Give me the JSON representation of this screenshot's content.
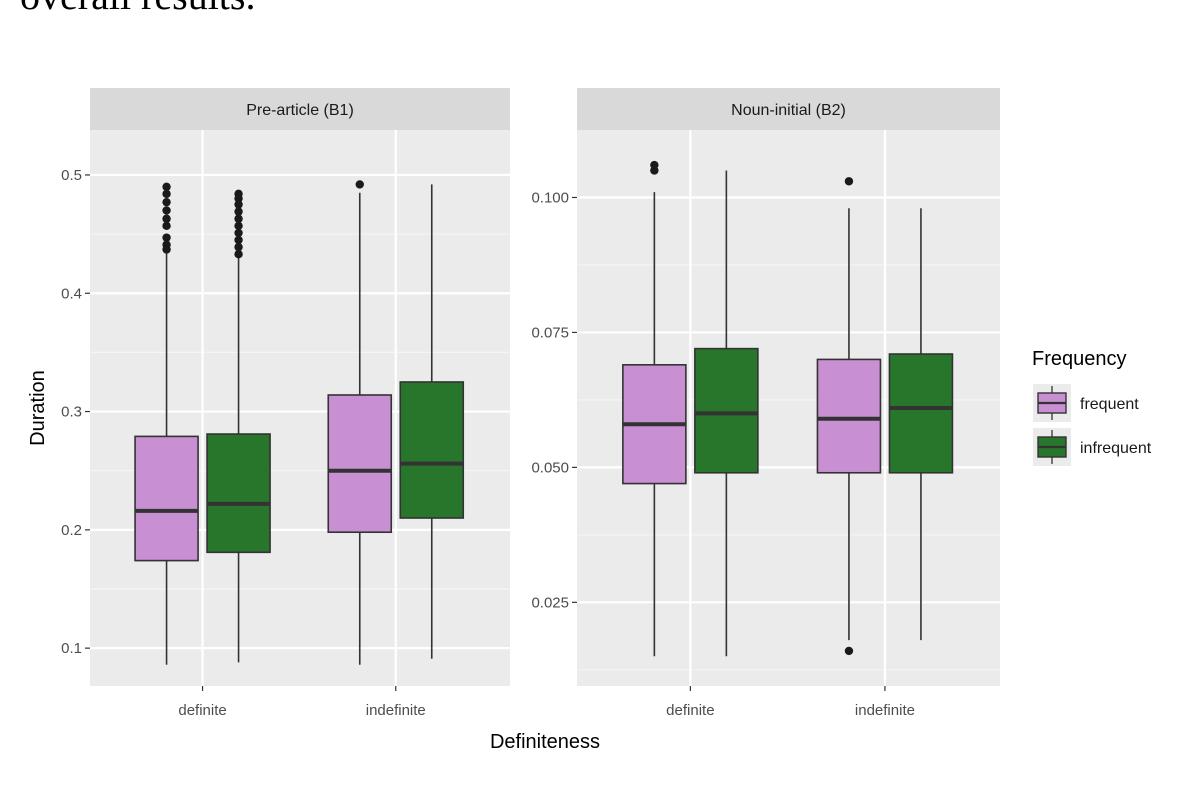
{
  "page_text": "overall results.",
  "chart_data": {
    "type": "boxplot",
    "xlabel": "Definiteness",
    "ylabel": "Duration",
    "legend": {
      "title": "Frequency",
      "placement": "right",
      "entries": [
        {
          "name": "frequent",
          "color": "#c88fd2"
        },
        {
          "name": "infrequent",
          "color": "#27762b"
        }
      ]
    },
    "categories": [
      "definite",
      "indefinite"
    ],
    "grid": true,
    "panels": [
      {
        "strip": "Pre-article (B1)",
        "ylim": [
          0.068,
          0.538
        ],
        "y_ticks": [
          {
            "value": 0.1,
            "label": "0.1"
          },
          {
            "value": 0.2,
            "label": "0.2"
          },
          {
            "value": 0.3,
            "label": "0.3"
          },
          {
            "value": 0.4,
            "label": "0.4"
          },
          {
            "value": 0.5,
            "label": "0.5"
          }
        ],
        "boxes": [
          {
            "category": "definite",
            "series": "frequent",
            "whisker_low": 0.086,
            "q1": 0.174,
            "median": 0.216,
            "q3": 0.279,
            "whisker_high": 0.436,
            "outliers": [
              0.437,
              0.441,
              0.447,
              0.457,
              0.463,
              0.47,
              0.477,
              0.484,
              0.49
            ]
          },
          {
            "category": "definite",
            "series": "infrequent",
            "whisker_low": 0.088,
            "q1": 0.181,
            "median": 0.222,
            "q3": 0.281,
            "whisker_high": 0.432,
            "outliers": [
              0.433,
              0.439,
              0.445,
              0.451,
              0.457,
              0.463,
              0.469,
              0.475,
              0.48,
              0.484
            ]
          },
          {
            "category": "indefinite",
            "series": "frequent",
            "whisker_low": 0.086,
            "q1": 0.198,
            "median": 0.25,
            "q3": 0.314,
            "whisker_high": 0.485,
            "outliers": [
              0.492
            ]
          },
          {
            "category": "indefinite",
            "series": "infrequent",
            "whisker_low": 0.091,
            "q1": 0.21,
            "median": 0.256,
            "q3": 0.325,
            "whisker_high": 0.492,
            "outliers": []
          }
        ]
      },
      {
        "strip": "Noun-initial (B2)",
        "ylim": [
          0.0095,
          0.1125
        ],
        "y_ticks": [
          {
            "value": 0.025,
            "label": "0.025"
          },
          {
            "value": 0.05,
            "label": "0.050"
          },
          {
            "value": 0.075,
            "label": "0.075"
          },
          {
            "value": 0.1,
            "label": "0.100"
          }
        ],
        "boxes": [
          {
            "category": "definite",
            "series": "frequent",
            "whisker_low": 0.015,
            "q1": 0.047,
            "median": 0.058,
            "q3": 0.069,
            "whisker_high": 0.101,
            "outliers": [
              0.105,
              0.106
            ]
          },
          {
            "category": "definite",
            "series": "infrequent",
            "whisker_low": 0.015,
            "q1": 0.049,
            "median": 0.06,
            "q3": 0.072,
            "whisker_high": 0.105,
            "outliers": []
          },
          {
            "category": "indefinite",
            "series": "frequent",
            "whisker_low": 0.018,
            "q1": 0.049,
            "median": 0.059,
            "q3": 0.07,
            "whisker_high": 0.098,
            "outliers": [
              0.016,
              0.103
            ]
          },
          {
            "category": "indefinite",
            "series": "infrequent",
            "whisker_low": 0.018,
            "q1": 0.049,
            "median": 0.061,
            "q3": 0.071,
            "whisker_high": 0.098,
            "outliers": []
          }
        ]
      }
    ]
  }
}
